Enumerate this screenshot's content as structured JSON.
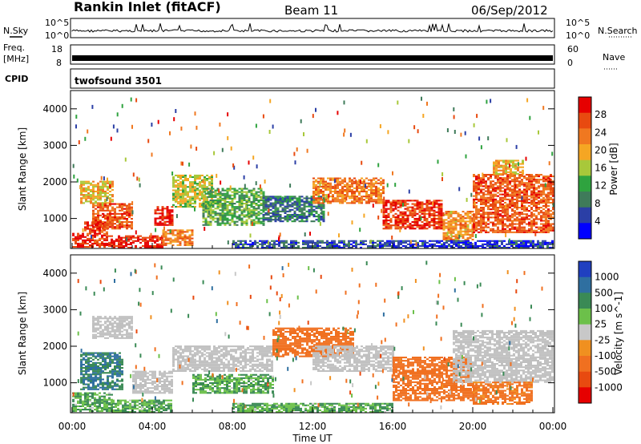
{
  "header": {
    "station": "Rankin Inlet (fitACF)",
    "beam": "Beam 11",
    "date": "06/Sep/2012"
  },
  "nsky_panel": {
    "left_label": "N.Sky",
    "left_top_tick": "10^5",
    "left_bottom_tick": "10^0",
    "right_label": "N.Search",
    "right_top_tick": "10^5",
    "right_bottom_tick": "10^0"
  },
  "freq_panel": {
    "left_label_line1": "Freq.",
    "left_label_line2": "[MHz]",
    "left_top_tick": "18",
    "left_bottom_tick": "8",
    "right_label": "Nave",
    "right_top_tick": "60",
    "right_bottom_tick": "0"
  },
  "cpid_panel": {
    "label": "CPID",
    "program": "twofsound 3501"
  },
  "colors": {
    "power_scale": [
      "#0000ff",
      "#2b3fa6",
      "#3f7b5a",
      "#2fa33f",
      "#a8c83a",
      "#f5a623",
      "#f07820",
      "#e84a10",
      "#e60000"
    ],
    "velocity_scale": [
      "#2040c0",
      "#2f6fa0",
      "#3a8a55",
      "#6cc04a",
      "#c8c8c8",
      "#f09020",
      "#f07020",
      "#e84a10",
      "#e60000"
    ],
    "ground_scatter": "#c0c0c0"
  },
  "chart_data": [
    {
      "type": "heatmap",
      "title": "",
      "ylabel": "Slant Range [km]",
      "xlabel": "",
      "x_ticks": [
        "00:00",
        "04:00",
        "08:00",
        "12:00",
        "16:00",
        "20:00",
        "00:00"
      ],
      "y_ticks": [
        "1000",
        "2000",
        "3000",
        "4000"
      ],
      "xlim_hours": [
        0,
        24
      ],
      "ylim_km": [
        180,
        4500
      ],
      "colorbar": {
        "label": "Power [dB]",
        "ticks": [
          "4",
          "8",
          "12",
          "16",
          "20",
          "24",
          "28"
        ],
        "range": [
          0,
          30
        ]
      },
      "regions": [
        {
          "t0": 0.0,
          "t1": 0.6,
          "r0": 200,
          "r1": 600,
          "v": 28
        },
        {
          "t0": 0.6,
          "t1": 1.8,
          "r0": 200,
          "r1": 900,
          "v": 26
        },
        {
          "t0": 1.8,
          "t1": 4.5,
          "r0": 180,
          "r1": 500,
          "v": 28
        },
        {
          "t0": 4.5,
          "t1": 6.0,
          "r0": 250,
          "r1": 700,
          "v": 22
        },
        {
          "t0": 0.4,
          "t1": 2.0,
          "r0": 1400,
          "r1": 2000,
          "v": 18
        },
        {
          "t0": 1.0,
          "t1": 3.0,
          "r0": 700,
          "r1": 1400,
          "v": 24
        },
        {
          "t0": 4.1,
          "t1": 5.0,
          "r0": 800,
          "r1": 1300,
          "v": 28
        },
        {
          "t0": 5.0,
          "t1": 7.0,
          "r0": 1300,
          "r1": 2200,
          "v": 16
        },
        {
          "t0": 6.5,
          "t1": 9.5,
          "r0": 800,
          "r1": 1800,
          "v": 12
        },
        {
          "t0": 9.5,
          "t1": 12.5,
          "r0": 900,
          "r1": 1600,
          "v": 8
        },
        {
          "t0": 12.0,
          "t1": 15.5,
          "r0": 1400,
          "r1": 2100,
          "v": 22
        },
        {
          "t0": 15.5,
          "t1": 18.5,
          "r0": 700,
          "r1": 1500,
          "v": 26
        },
        {
          "t0": 18.5,
          "t1": 20.0,
          "r0": 400,
          "r1": 1200,
          "v": 20
        },
        {
          "t0": 20.0,
          "t1": 24.0,
          "r0": 600,
          "r1": 2200,
          "v": 24
        },
        {
          "t0": 21.0,
          "t1": 22.5,
          "r0": 2200,
          "r1": 2600,
          "v": 18
        },
        {
          "t0": 8.0,
          "t1": 16.0,
          "r0": 180,
          "r1": 400,
          "v": 6
        },
        {
          "t0": 16.0,
          "t1": 24.0,
          "r0": 180,
          "r1": 400,
          "v": 4
        }
      ]
    },
    {
      "type": "heatmap",
      "title": "",
      "ylabel": "Slant Range [km]",
      "xlabel": "Time UT",
      "x_ticks": [
        "00:00",
        "04:00",
        "08:00",
        "12:00",
        "16:00",
        "20:00",
        "00:00"
      ],
      "y_ticks": [
        "1000",
        "2000",
        "3000",
        "4000"
      ],
      "xlim_hours": [
        0,
        24
      ],
      "ylim_km": [
        180,
        4500
      ],
      "colorbar": {
        "label": "Velocity [m s^-1]",
        "ticks": [
          "1000",
          "500",
          "100",
          "25",
          "-25",
          "-100",
          "-500",
          "-1000"
        ],
        "range": [
          -1000,
          1000
        ]
      },
      "regions": [
        {
          "t0": 0.0,
          "t1": 2.0,
          "r0": 200,
          "r1": 700,
          "v": 100,
          "gs": false
        },
        {
          "t0": 2.0,
          "t1": 5.0,
          "r0": 180,
          "r1": 500,
          "v": 100,
          "gs": false
        },
        {
          "t0": 0.4,
          "t1": 2.5,
          "r0": 800,
          "r1": 1800,
          "v": 500,
          "gs": false
        },
        {
          "t0": 1.0,
          "t1": 3.0,
          "r0": 2200,
          "r1": 2800,
          "v": 0,
          "gs": true
        },
        {
          "t0": 3.0,
          "t1": 5.0,
          "r0": 700,
          "r1": 1300,
          "v": 0,
          "gs": true
        },
        {
          "t0": 5.0,
          "t1": 10.0,
          "r0": 1300,
          "r1": 2000,
          "v": 0,
          "gs": true
        },
        {
          "t0": 6.0,
          "t1": 10.0,
          "r0": 700,
          "r1": 1200,
          "v": 100,
          "gs": false
        },
        {
          "t0": 10.0,
          "t1": 14.0,
          "r0": 1700,
          "r1": 2500,
          "v": -200,
          "gs": false
        },
        {
          "t0": 12.0,
          "t1": 16.0,
          "r0": 1300,
          "r1": 2000,
          "v": 0,
          "gs": true
        },
        {
          "t0": 16.0,
          "t1": 20.0,
          "r0": 500,
          "r1": 1700,
          "v": -300,
          "gs": false
        },
        {
          "t0": 19.0,
          "t1": 24.0,
          "r0": 1000,
          "r1": 2400,
          "v": 0,
          "gs": true
        },
        {
          "t0": 20.0,
          "t1": 23.0,
          "r0": 400,
          "r1": 1000,
          "v": -150,
          "gs": false
        },
        {
          "t0": 8.0,
          "t1": 16.0,
          "r0": 180,
          "r1": 450,
          "v": 100,
          "gs": false
        }
      ]
    }
  ]
}
